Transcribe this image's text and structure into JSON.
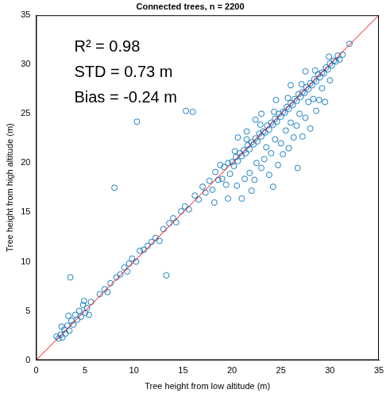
{
  "chart_data": {
    "type": "scatter",
    "title": "Connected trees, n = 2200",
    "x_label": "Tree height from low altitude (m)",
    "y_label": "Tree height from high altitude (m)",
    "annotations": [
      "R² = 0.98",
      "STD = 0.73 m",
      "Bias = -0.24 m"
    ],
    "xlim": [
      0,
      35
    ],
    "ylim": [
      0,
      35
    ],
    "xticks": [
      0,
      5,
      10,
      15,
      20,
      25,
      30,
      35
    ],
    "yticks": [
      0,
      5,
      10,
      15,
      20,
      25,
      30,
      35
    ],
    "grid": false,
    "series": [
      {
        "type": "scatter",
        "color": "#0072bd",
        "marker": "circle",
        "x": [
          2.1,
          2.3,
          2.5,
          2.7,
          2.9,
          3.0,
          3.2,
          3.4,
          3.6,
          3.8,
          3.5,
          4.0,
          4.2,
          4.4,
          4.6,
          4.8,
          5.0,
          5.2,
          5.4,
          5.6,
          4.9,
          3.3,
          2.6,
          6.5,
          7.0,
          7.3,
          7.6,
          8.0,
          8.2,
          8.6,
          9.0,
          9.3,
          9.5,
          9.8,
          10.2,
          10.3,
          10.6,
          11.0,
          11.4,
          11.8,
          12.2,
          12.6,
          13.0,
          13.3,
          13.6,
          14.0,
          14.3,
          14.8,
          15.2,
          15.3,
          15.6,
          16.0,
          16.2,
          16.6,
          17.0,
          17.3,
          17.7,
          18.0,
          18.3,
          18.6,
          18.8,
          19.0,
          19.2,
          19.4,
          19.6,
          19.8,
          20.0,
          20.2,
          20.4,
          20.6,
          20.8,
          21.0,
          21.2,
          21.4,
          21.6,
          21.8,
          22.0,
          22.2,
          22.4,
          22.6,
          22.8,
          23.0,
          23.2,
          23.4,
          23.6,
          23.8,
          24.0,
          24.2,
          24.4,
          24.6,
          24.8,
          25.0,
          25.2,
          25.4,
          25.6,
          25.8,
          26.0,
          26.2,
          26.4,
          26.6,
          26.8,
          27.0,
          27.2,
          27.4,
          27.6,
          27.8,
          28.0,
          28.2,
          28.4,
          28.6,
          28.8,
          29.0,
          29.2,
          29.4,
          29.6,
          29.8,
          30.0,
          30.2,
          30.4,
          30.6,
          30.8,
          31.0,
          31.3,
          32.0,
          20.3,
          21.5,
          22.9,
          24.3,
          25.7,
          27.1,
          28.5,
          29.9,
          20.5,
          21.0,
          21.8,
          22.3,
          22.5,
          23.0,
          23.3,
          23.5,
          23.8,
          24.0,
          24.4,
          24.7,
          25.0,
          25.2,
          25.5,
          25.8,
          26.0,
          26.3,
          26.6,
          26.9,
          27.2,
          27.5,
          27.8,
          28.0,
          28.3,
          28.6,
          28.9,
          29.2,
          29.5,
          30.0,
          26.7,
          24.2,
          22.0,
          21.3,
          19.6,
          18.2,
          21.5,
          23.0,
          24.5,
          26.0,
          27.5,
          22.4,
          20.6
        ],
        "values": [
          2.4,
          2.2,
          2.6,
          2.3,
          3.1,
          2.7,
          3.5,
          3.0,
          4.0,
          3.6,
          8.4,
          4.6,
          4.1,
          5.0,
          4.4,
          5.6,
          4.8,
          5.3,
          4.6,
          5.9,
          6.0,
          4.5,
          3.4,
          6.7,
          7.2,
          6.9,
          7.8,
          17.5,
          8.4,
          8.7,
          9.4,
          9.0,
          9.8,
          10.3,
          10.0,
          24.2,
          11.1,
          11.2,
          11.6,
          12.0,
          12.4,
          12.1,
          13.3,
          8.6,
          13.9,
          14.4,
          14.0,
          15.1,
          15.6,
          25.3,
          15.3,
          25.2,
          16.7,
          16.3,
          17.6,
          17.0,
          18.2,
          17.3,
          19.1,
          18.3,
          19.8,
          18.4,
          19.6,
          17.8,
          20.0,
          18.9,
          20.1,
          19.7,
          20.6,
          20.2,
          21.0,
          20.7,
          21.3,
          21.0,
          21.8,
          21.4,
          22.1,
          21.9,
          22.5,
          22.2,
          23.0,
          22.7,
          23.2,
          23.1,
          23.8,
          23.4,
          24.1,
          23.9,
          24.5,
          24.2,
          25.0,
          24.7,
          25.2,
          25.1,
          25.7,
          25.5,
          26.1,
          25.9,
          26.5,
          26.3,
          27.0,
          26.7,
          27.2,
          27.1,
          27.7,
          27.5,
          28.1,
          27.9,
          28.5,
          28.3,
          29.0,
          28.7,
          29.2,
          29.1,
          29.7,
          29.5,
          30.1,
          29.9,
          30.4,
          30.3,
          30.9,
          30.5,
          31.0,
          32.1,
          21.2,
          22.4,
          23.9,
          25.2,
          26.6,
          28.0,
          29.4,
          30.8,
          17.7,
          16.4,
          19.0,
          18.3,
          20.0,
          19.5,
          20.4,
          21.6,
          18.8,
          21.0,
          22.4,
          19.8,
          22.0,
          20.9,
          23.3,
          21.5,
          24.1,
          22.6,
          23.8,
          25.0,
          22.7,
          24.6,
          26.2,
          23.5,
          26.5,
          25.3,
          26.4,
          27.6,
          26.2,
          28.4,
          19.5,
          17.6,
          17.2,
          18.4,
          16.4,
          16.0,
          23.2,
          25.0,
          26.4,
          27.9,
          29.3,
          24.4,
          22.6
        ]
      },
      {
        "type": "line",
        "color": "#ff0000",
        "line_style": "solid",
        "x": [
          0,
          35
        ],
        "values": [
          0,
          35
        ]
      }
    ]
  }
}
